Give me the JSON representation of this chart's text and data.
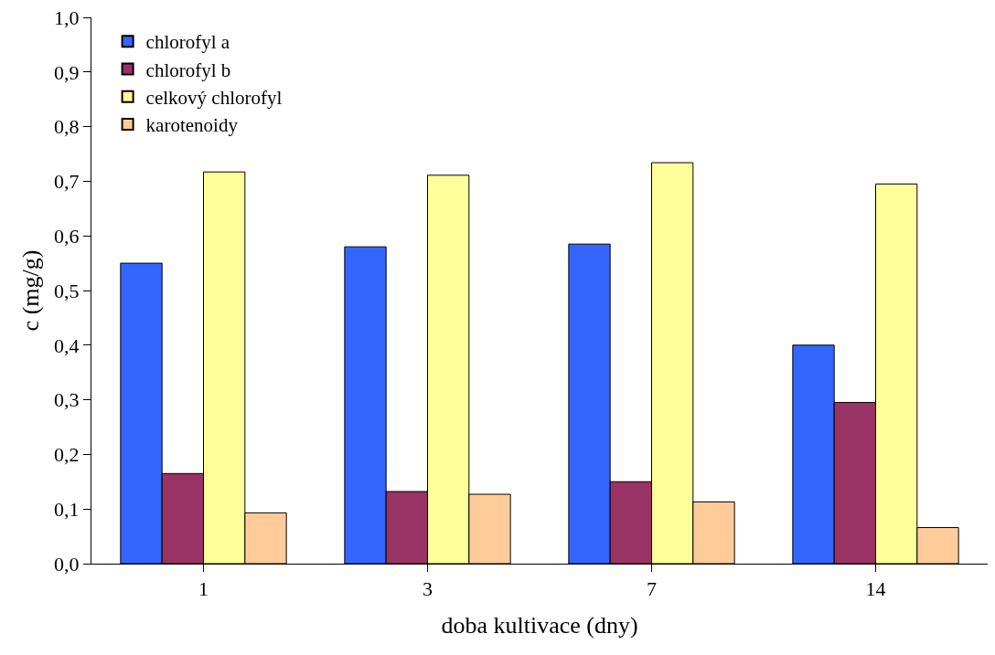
{
  "chart_data": {
    "type": "bar",
    "xlabel": "doba kultivace (dny)",
    "ylabel": "c (mg/g)",
    "categories": [
      "1",
      "3",
      "7",
      "14"
    ],
    "series": [
      {
        "name": "chlorofyl a",
        "color": "#3366ff",
        "values": [
          0.55,
          0.58,
          0.585,
          0.4
        ]
      },
      {
        "name": "chlorofyl b",
        "color": "#993366",
        "values": [
          0.165,
          0.132,
          0.15,
          0.295
        ]
      },
      {
        "name": "celkový chlorofyl",
        "color": "#ffff99",
        "values": [
          0.717,
          0.711,
          0.734,
          0.695
        ]
      },
      {
        "name": "karotenoidy",
        "color": "#ffcc99",
        "values": [
          0.093,
          0.127,
          0.113,
          0.066
        ]
      }
    ],
    "ylim": [
      0,
      1
    ],
    "yticks": [
      {
        "value": 0,
        "label": "0,0"
      },
      {
        "value": 0.1,
        "label": "0,1"
      },
      {
        "value": 0.2,
        "label": "0,2"
      },
      {
        "value": 0.3,
        "label": "0,3"
      },
      {
        "value": 0.4,
        "label": "0,4"
      },
      {
        "value": 0.5,
        "label": "0,5"
      },
      {
        "value": 0.6,
        "label": "0,6"
      },
      {
        "value": 0.7,
        "label": "0,7"
      },
      {
        "value": 0.8,
        "label": "0,8"
      },
      {
        "value": 0.9,
        "label": "0,9"
      },
      {
        "value": 1,
        "label": "1,0"
      }
    ],
    "grid": false,
    "legend": "top left"
  }
}
